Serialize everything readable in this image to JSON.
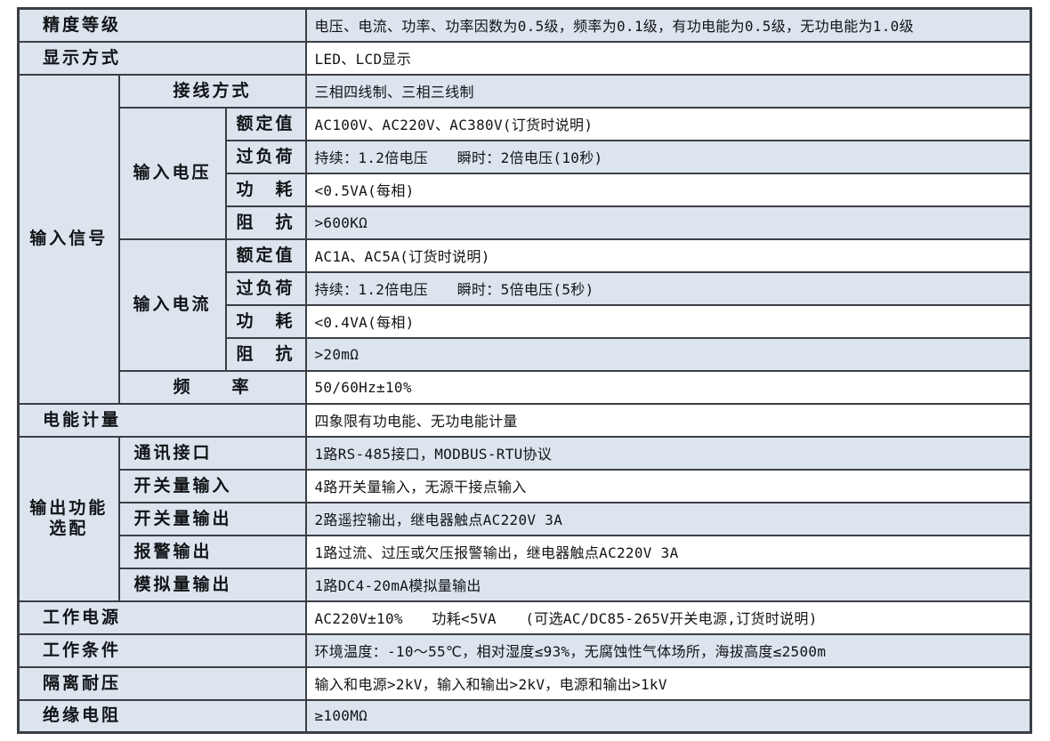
{
  "colors": {
    "row_shade": "#dce4ee",
    "border": "#3b3f45",
    "text": "#111417"
  },
  "table": {
    "accuracy": {
      "label": "精度等级",
      "value": "电压、电流、功率、功率因数为0.5级，频率为0.1级，有功电能为0.5级，无功电能为1.0级"
    },
    "display": {
      "label": "显示方式",
      "value": "LED、LCD显示"
    },
    "input_signal": {
      "label": "输入信号",
      "wiring": {
        "label": "接线方式",
        "value": "三相四线制、三相三线制"
      },
      "voltage": {
        "label": "输入电压",
        "rated": {
          "label": "额定值",
          "value": "AC100V、AC220V、AC380V(订货时说明)"
        },
        "overload": {
          "label": "过负荷",
          "value": "持续：1.2倍电压　　瞬时：2倍电压(10秒)"
        },
        "consumption": {
          "label": "功　耗",
          "value": "<0.5VA(每相)"
        },
        "impedance": {
          "label": "阻　抗",
          "value": ">600KΩ"
        }
      },
      "current": {
        "label": "输入电流",
        "rated": {
          "label": "额定值",
          "value": "AC1A、AC5A(订货时说明)"
        },
        "overload": {
          "label": "过负荷",
          "value": "持续：1.2倍电压　　瞬时：5倍电压(5秒)"
        },
        "consumption": {
          "label": "功　耗",
          "value": "<0.4VA(每相)"
        },
        "impedance": {
          "label": "阻　抗",
          "value": ">20mΩ"
        }
      },
      "frequency": {
        "label": "频　　率",
        "value": "50/60Hz±10%"
      }
    },
    "energy": {
      "label": "电能计量",
      "value": "四象限有功电能、无功电能计量"
    },
    "output_options": {
      "label": "输出功能选配",
      "comm": {
        "label": "通讯接口",
        "value": "1路RS-485接口，MODBUS-RTU协议"
      },
      "di": {
        "label": "开关量输入",
        "value": "4路开关量输入，无源干接点输入"
      },
      "do": {
        "label": "开关量输出",
        "value": "2路遥控输出，继电器触点AC220V 3A"
      },
      "alarm": {
        "label": "报警输出",
        "value": "1路过流、过压或欠压报警输出，继电器触点AC220V 3A"
      },
      "analog": {
        "label": "模拟量输出",
        "value": "1路DC4-20mA模拟量输出"
      }
    },
    "power": {
      "label": "工作电源",
      "value": "AC220V±10%　　功耗<5VA　　(可选AC/DC85-265V开关电源,订货时说明)"
    },
    "conditions": {
      "label": "工作条件",
      "value": "环境温度：-10～55℃，相对湿度≤93%，无腐蚀性气体场所，海拔高度≤2500m"
    },
    "isolation": {
      "label": "隔离耐压",
      "value": "输入和电源>2kV，输入和输出>2kV，电源和输出>1kV"
    },
    "insulation": {
      "label": "绝缘电阻",
      "value": "≥100MΩ"
    }
  }
}
